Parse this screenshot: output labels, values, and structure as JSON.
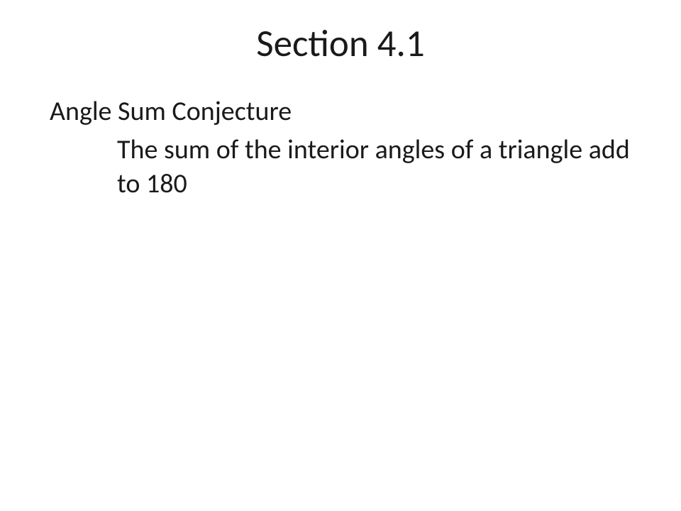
{
  "slide": {
    "title": "Section 4.1",
    "subtitle": "Angle Sum Conjecture",
    "body": "The sum of the interior angles of a triangle add to 180",
    "title_fontsize": 53,
    "subtitle_fontsize": 38,
    "body_fontsize": 38,
    "text_color": "#1a1a1a",
    "background_color": "#ffffff",
    "font_family": "Calibri"
  }
}
